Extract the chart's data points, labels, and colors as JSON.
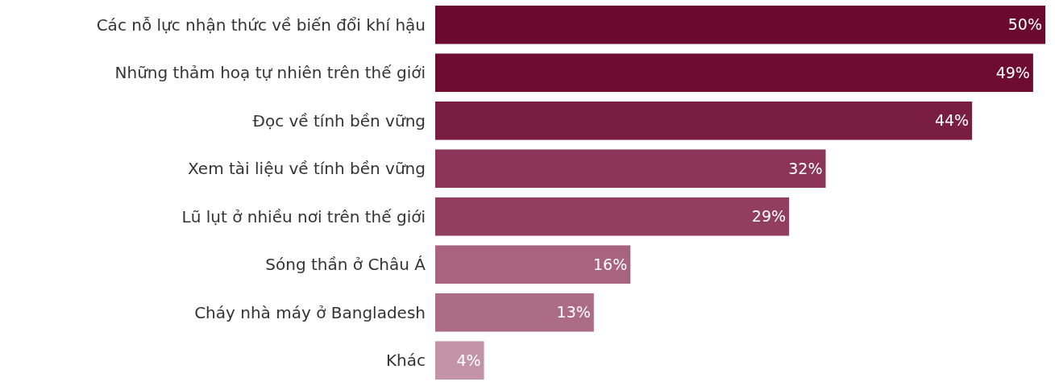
{
  "chart_data": {
    "type": "bar",
    "orientation": "horizontal",
    "categories": [
      "Các nỗ lực nhận thức về biến đổi khí hậu",
      "Những thảm hoạ tự nhiên trên thế giới",
      "Đọc về tính bền vững",
      "Xem tài liệu về tính bền vững",
      "Lũ lụt ở nhiều nơi trên thế giới",
      "Sóng thần ở Châu Á",
      "Cháy nhà máy ở Bangladesh",
      "Khác"
    ],
    "values": [
      50,
      49,
      44,
      32,
      29,
      16,
      13,
      4
    ],
    "value_labels": [
      "50%",
      "49%",
      "44%",
      "32%",
      "29%",
      "16%",
      "13%",
      "4%"
    ],
    "colors": [
      "#6b0a2f",
      "#6e0c30",
      "#7a1d42",
      "#8c3558",
      "#923e5f",
      "#a8647f",
      "#ad6c86",
      "#c393a6"
    ]
  }
}
